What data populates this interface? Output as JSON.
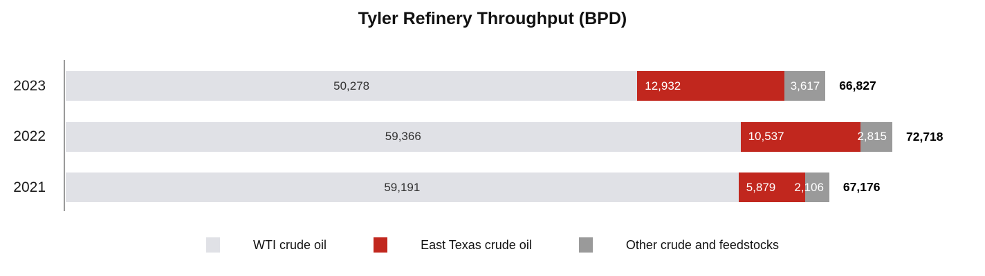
{
  "page": {
    "background": "#ffffff"
  },
  "chart_data": {
    "type": "bar",
    "orientation": "horizontal-stacked",
    "title": "Tyler Refinery Throughput (BPD)",
    "categories": [
      "2023",
      "2022",
      "2021"
    ],
    "series": [
      {
        "name": "WTI crude oil",
        "color": "#e0e1e6",
        "label_color": "#333333",
        "label_align": "center",
        "values": [
          50278,
          59366,
          59191
        ]
      },
      {
        "name": "East Texas crude oil",
        "color": "#c1271e",
        "label_color": "#ffffff",
        "label_align": "left",
        "values": [
          12932,
          10537,
          5879
        ]
      },
      {
        "name": "Other crude and feedstocks",
        "color": "#9a9a9a",
        "label_color": "#ffffff",
        "label_align": "right",
        "values": [
          3617,
          2815,
          2106
        ]
      }
    ],
    "totals": [
      66827,
      72718,
      67176
    ],
    "xlim": [
      0,
      72718
    ],
    "grid": false,
    "legend_position": "bottom",
    "axis_line_color": "#9a9a9a"
  }
}
